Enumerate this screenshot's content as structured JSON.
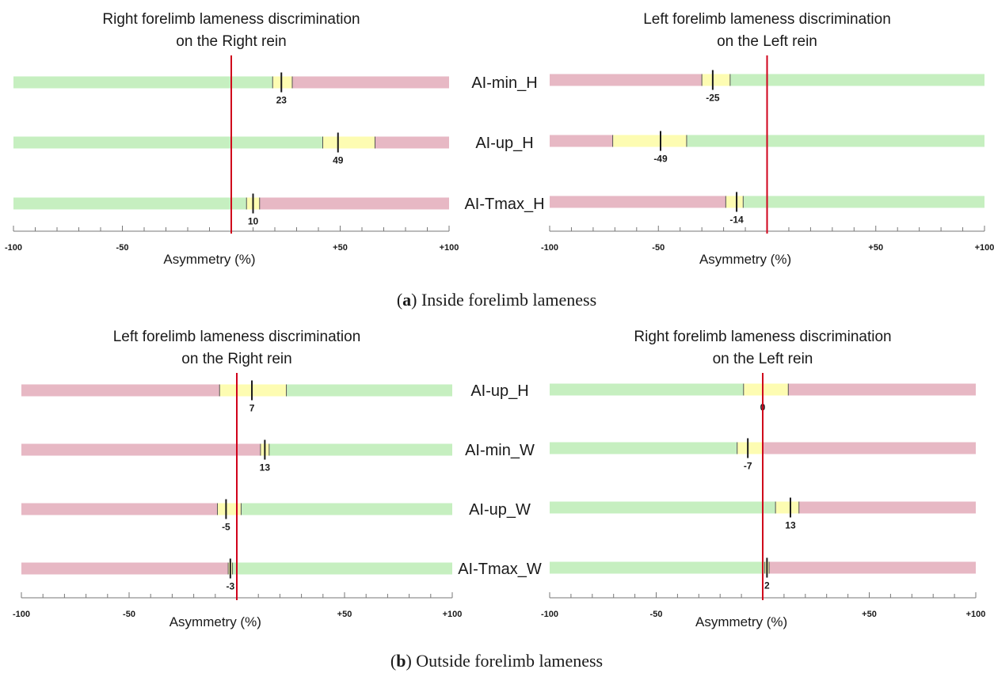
{
  "colors": {
    "green": "#c6efc0",
    "red": "#e7b8c4",
    "yellow": "#fdfcb2",
    "zero_line": "#d0021b",
    "marker": "#1a1a1a",
    "axis": "#777777"
  },
  "captions": {
    "a_letter": "a",
    "a_text": " Inside forelimb lameness",
    "b_letter": "b",
    "b_text": " Outside forelimb lameness"
  },
  "chart_data": [
    {
      "type": "bar",
      "panel": "a-left",
      "title": [
        "Right forelimb lameness discrimination",
        "on the Right rein"
      ],
      "xlabel": "Asymmetry (%)",
      "xlim": [
        -100,
        100
      ],
      "xticks": [
        "-100",
        "-50",
        "0",
        "+50",
        "+100"
      ],
      "green_side": "left",
      "rows": [
        {
          "metric": "AI-min_H",
          "value": 23,
          "band": [
            19,
            28
          ]
        },
        {
          "metric": "AI-up_H",
          "value": 49,
          "band": [
            42,
            66
          ]
        },
        {
          "metric": "AI-Tmax_H",
          "value": 10,
          "band": [
            7,
            13
          ]
        }
      ]
    },
    {
      "type": "bar",
      "panel": "a-right",
      "title": [
        "Left forelimb lameness discrimination",
        "on the Left rein"
      ],
      "xlabel": "Asymmetry (%)",
      "xlim": [
        -100,
        100
      ],
      "xticks": [
        "-100",
        "-50",
        "0",
        "+50",
        "+100"
      ],
      "green_side": "right",
      "rows": [
        {
          "metric": "",
          "value": -25,
          "band": [
            -30,
            -17
          ]
        },
        {
          "metric": "",
          "value": -49,
          "band": [
            -71,
            -37
          ]
        },
        {
          "metric": "",
          "value": -14,
          "band": [
            -19,
            -11
          ]
        }
      ]
    },
    {
      "type": "bar",
      "panel": "b-left",
      "title": [
        "Left forelimb lameness discrimination",
        "on the Right rein"
      ],
      "xlabel": "Asymmetry (%)",
      "xlim": [
        -100,
        100
      ],
      "xticks": [
        "-100",
        "-50",
        "0",
        "+50",
        "+100"
      ],
      "green_side": "right",
      "rows": [
        {
          "metric": "AI-up_H",
          "value": 7,
          "band": [
            -8,
            23
          ]
        },
        {
          "metric": "AI-min_W",
          "value": 13,
          "band": [
            11,
            15
          ]
        },
        {
          "metric": "AI-up_W",
          "value": -5,
          "band": [
            -9,
            2
          ]
        },
        {
          "metric": "AI-Tmax_W",
          "value": -3,
          "band": [
            -4,
            -2
          ]
        }
      ]
    },
    {
      "type": "bar",
      "panel": "b-right",
      "title": [
        "Right forelimb lameness discrimination",
        "on the Left rein"
      ],
      "xlabel": "Asymmetry (%)",
      "xlim": [
        -100,
        100
      ],
      "xticks": [
        "-100",
        "-50",
        "0",
        "+50",
        "+100"
      ],
      "green_side": "left",
      "rows": [
        {
          "metric": "",
          "value": 0,
          "band": [
            -9,
            12
          ]
        },
        {
          "metric": "",
          "value": -7,
          "band": [
            -12,
            0
          ]
        },
        {
          "metric": "",
          "value": 13,
          "band": [
            6,
            17
          ]
        },
        {
          "metric": "",
          "value": 2,
          "band": [
            1,
            3
          ]
        }
      ]
    }
  ]
}
